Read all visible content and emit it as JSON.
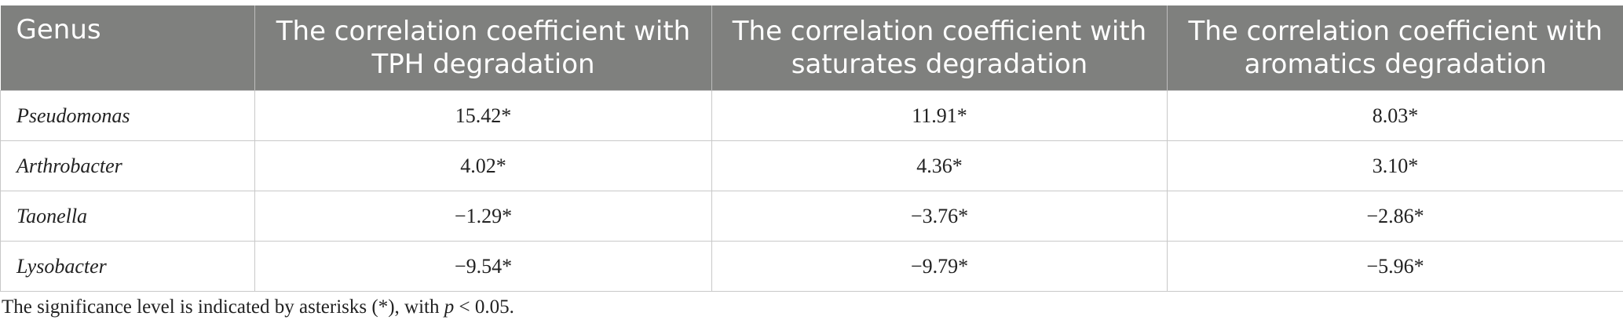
{
  "table": {
    "header": [
      "Genus",
      "The correlation coefficient with TPH degradation",
      "The correlation coefficient with saturates degradation",
      "The correlation coefficient with aromatics degradation"
    ],
    "rows": [
      [
        "Pseudomonas",
        "15.42*",
        "11.91*",
        "8.03*"
      ],
      [
        "Arthrobacter",
        "4.02*",
        "4.36*",
        "3.10*"
      ],
      [
        "Taonella",
        "−1.29*",
        "−3.76*",
        "−2.86*"
      ],
      [
        "Lysobacter",
        "−9.54*",
        "−9.79*",
        "−5.96*"
      ]
    ]
  },
  "footnote": [
    "The significance level is indicated by asterisks (*), with ",
    "p",
    " < 0.05."
  ]
}
